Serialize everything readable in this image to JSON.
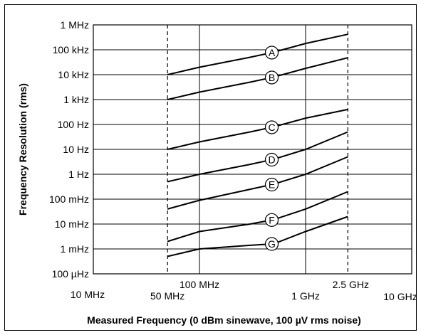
{
  "chart_data": {
    "type": "line",
    "xlabel": "Measured Frequency  (0 dBm  sinewave, 100 µV rms noise)",
    "ylabel": "Frequency Resolution (rms)",
    "x_scale": "log",
    "y_scale": "log",
    "xlim": [
      10000000,
      10000000000
    ],
    "ylim": [
      0.0001,
      1000000
    ],
    "x_ticks": [
      {
        "value": 10000000,
        "label": "10 MHz"
      },
      {
        "value": 50000000,
        "label": "50 MHz"
      },
      {
        "value": 100000000,
        "label": "100 MHz"
      },
      {
        "value": 1000000000,
        "label": "1 GHz"
      },
      {
        "value": 2500000000,
        "label": "2.5 GHz"
      },
      {
        "value": 10000000000,
        "label": "10 GHz"
      }
    ],
    "y_ticks": [
      {
        "value": 1000000,
        "label": "1 MHz"
      },
      {
        "value": 100000,
        "label": "100 kHz"
      },
      {
        "value": 10000,
        "label": "10 kHz"
      },
      {
        "value": 1000,
        "label": "1 kHz"
      },
      {
        "value": 100,
        "label": "100 Hz"
      },
      {
        "value": 10,
        "label": "10 Hz"
      },
      {
        "value": 1,
        "label": "1 Hz"
      },
      {
        "value": 0.1,
        "label": "100 mHz"
      },
      {
        "value": 0.01,
        "label": "10 mHz"
      },
      {
        "value": 0.001,
        "label": "1 mHz"
      },
      {
        "value": 0.0001,
        "label": "100 µHz"
      }
    ],
    "dashed_verticals": [
      50000000,
      2500000000
    ],
    "grid": true,
    "series": [
      {
        "name": "A",
        "label_x": 480000000,
        "x": [
          50000000,
          100000000,
          300000000,
          500000000,
          1000000000,
          2500000000
        ],
        "y": [
          10000,
          20000,
          50000,
          80000,
          180000,
          420000
        ]
      },
      {
        "name": "B",
        "label_x": 480000000,
        "x": [
          50000000,
          100000000,
          300000000,
          500000000,
          1000000000,
          2500000000
        ],
        "y": [
          1000,
          2000,
          5000,
          8000,
          18000,
          48000
        ]
      },
      {
        "name": "C",
        "label_x": 480000000,
        "x": [
          50000000,
          100000000,
          300000000,
          500000000,
          1000000000,
          2500000000
        ],
        "y": [
          10,
          20,
          50,
          80,
          180,
          400
        ]
      },
      {
        "name": "D",
        "label_x": 480000000,
        "x": [
          50000000,
          100000000,
          300000000,
          500000000,
          1000000000,
          2500000000
        ],
        "y": [
          0.5,
          1,
          2.5,
          4,
          10,
          50
        ]
      },
      {
        "name": "E",
        "label_x": 480000000,
        "x": [
          50000000,
          100000000,
          300000000,
          500000000,
          1000000000,
          2500000000
        ],
        "y": [
          0.04,
          0.09,
          0.25,
          0.4,
          1,
          5
        ]
      },
      {
        "name": "F",
        "label_x": 480000000,
        "x": [
          50000000,
          100000000,
          300000000,
          500000000,
          1000000000,
          2500000000
        ],
        "y": [
          0.002,
          0.005,
          0.01,
          0.015,
          0.04,
          0.2
        ]
      },
      {
        "name": "G",
        "label_x": 480000000,
        "x": [
          50000000,
          100000000,
          300000000,
          500000000,
          1000000000,
          2500000000
        ],
        "y": [
          0.0005,
          0.001,
          0.0014,
          0.0016,
          0.005,
          0.02
        ]
      }
    ]
  }
}
